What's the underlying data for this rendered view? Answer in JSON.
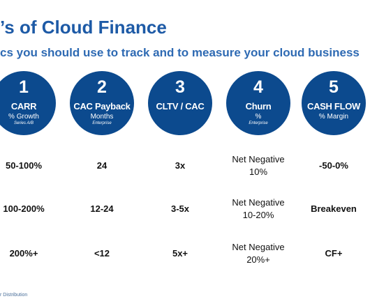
{
  "header": {
    "title": "’s of Cloud Finance",
    "subtitle": "cs you should use to track and to measure your cloud business"
  },
  "metrics": [
    {
      "number": "1",
      "label": "CARR",
      "sublabel": "% Growth",
      "note": "Series A/B"
    },
    {
      "number": "2",
      "label": "CAC Payback",
      "sublabel": "Months",
      "note": "Enterprise"
    },
    {
      "number": "3",
      "label": "CLTV / CAC"
    },
    {
      "number": "4",
      "label": "Churn",
      "sublabel": "%",
      "note": "Enterprise"
    },
    {
      "number": "5",
      "label": "CASH FLOW",
      "sublabel": "% Margin"
    }
  ],
  "table": {
    "rows": [
      [
        [
          "50-100%"
        ],
        [
          "24"
        ],
        [
          "3x"
        ],
        [
          "Net Negative",
          "10%"
        ],
        [
          "-50-0%"
        ]
      ],
      [
        [
          "100-200%"
        ],
        [
          "12-24"
        ],
        [
          "3-5x"
        ],
        [
          "Net Negative",
          "10-20%"
        ],
        [
          "Breakeven"
        ]
      ],
      [
        [
          "200%+"
        ],
        [
          "<12"
        ],
        [
          "5x+"
        ],
        [
          "Net Negative",
          "20%+"
        ],
        [
          "CF+"
        ]
      ]
    ]
  },
  "footer": {
    "text": "r Distribution"
  }
}
